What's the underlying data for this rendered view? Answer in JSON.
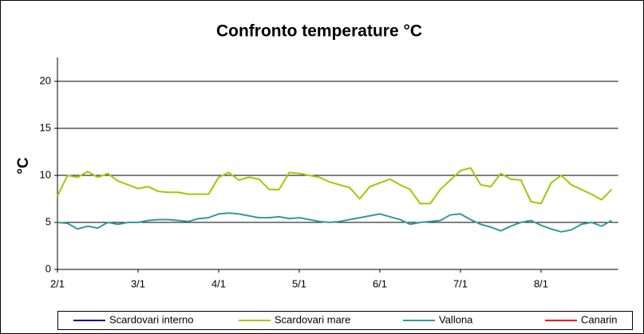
{
  "chart_data": {
    "type": "line",
    "title": "Confronto temperature °C",
    "y_label": "°C",
    "categories": [
      "2/1",
      null,
      null,
      null,
      null,
      null,
      null,
      null,
      "3/1",
      null,
      null,
      null,
      null,
      null,
      null,
      null,
      "4/1",
      null,
      null,
      null,
      null,
      null,
      null,
      null,
      "5/1",
      null,
      null,
      null,
      null,
      null,
      null,
      null,
      "6/1",
      null,
      null,
      null,
      null,
      null,
      null,
      null,
      "7/1",
      null,
      null,
      null,
      null,
      null,
      null,
      null,
      "8/1",
      null,
      null,
      null,
      null,
      null,
      null,
      null
    ],
    "series": [
      {
        "name": "Scardovari interno",
        "color": "#000080",
        "values": [
          null,
          null,
          null,
          null,
          null,
          null,
          null,
          null,
          null,
          null,
          null,
          null,
          null,
          null,
          null,
          null,
          null,
          null,
          null,
          null,
          null,
          null,
          null,
          null,
          null,
          null,
          null,
          null,
          null,
          null,
          null,
          null,
          null,
          null,
          null,
          null,
          null,
          null,
          null,
          null,
          null,
          null,
          null,
          null,
          null,
          null,
          null,
          null,
          null,
          null,
          null,
          null,
          null,
          null,
          null,
          null
        ]
      },
      {
        "name": "Scardovari mare",
        "color": "#99cc00",
        "values": [
          7.8,
          10.0,
          9.8,
          10.4,
          9.8,
          10.2,
          9.4,
          9.0,
          8.6,
          8.8,
          8.3,
          8.2,
          8.2,
          8.0,
          8.0,
          8.0,
          9.8,
          10.3,
          9.5,
          9.8,
          9.6,
          8.5,
          8.5,
          10.3,
          10.2,
          10.0,
          9.8,
          9.3,
          9.0,
          8.7,
          7.5,
          8.8,
          9.2,
          9.6,
          9.0,
          8.5,
          7.0,
          7.0,
          8.5,
          9.5,
          10.5,
          10.8,
          9.0,
          8.8,
          10.2,
          9.6,
          9.5,
          7.2,
          7.0,
          9.2,
          10.0,
          9.0,
          8.5,
          8.0,
          7.4,
          8.5
        ]
      },
      {
        "name": "Vallona",
        "color": "#339999",
        "values": [
          5.0,
          4.9,
          4.3,
          4.6,
          4.4,
          5.0,
          4.8,
          5.0,
          5.0,
          5.2,
          5.3,
          5.3,
          5.2,
          5.1,
          5.4,
          5.5,
          5.9,
          6.0,
          5.9,
          5.7,
          5.5,
          5.5,
          5.6,
          5.4,
          5.5,
          5.3,
          5.1,
          5.0,
          5.1,
          5.3,
          5.5,
          5.7,
          5.9,
          5.6,
          5.3,
          4.8,
          5.0,
          5.1,
          5.2,
          5.8,
          5.9,
          5.3,
          4.8,
          4.5,
          4.1,
          4.6,
          5.0,
          5.2,
          4.7,
          4.3,
          4.0,
          4.2,
          4.8,
          5.0,
          4.6,
          5.2
        ]
      },
      {
        "name": "Canarin",
        "color": "#ff0000",
        "values": [
          null,
          null,
          null,
          null,
          null,
          null,
          null,
          null,
          null,
          null,
          null,
          null,
          null,
          null,
          null,
          null,
          null,
          null,
          null,
          null,
          null,
          null,
          null,
          null,
          null,
          null,
          null,
          null,
          null,
          null,
          null,
          null,
          null,
          null,
          null,
          null,
          null,
          null,
          null,
          null,
          null,
          null,
          null,
          null,
          null,
          null,
          null,
          null,
          null,
          null,
          null,
          null,
          null,
          null,
          null,
          null
        ]
      }
    ],
    "ylim": [
      0,
      20
    ],
    "yticks": [
      0,
      5,
      10,
      15,
      20
    ],
    "grid": true,
    "legend": "bottom"
  }
}
